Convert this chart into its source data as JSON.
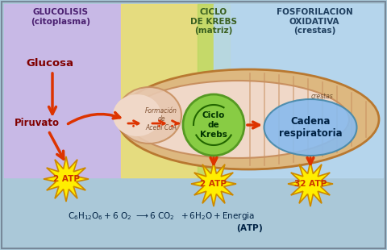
{
  "bg_color": "#aac8d8",
  "section_glucolisis_color": "#ccb8e8",
  "section_krebs_yellow": "#f0e070",
  "section_krebs_green": "#b8d860",
  "section_fosfo_color": "#b8d8f0",
  "title_glucolisis": "GLUCOLISIS\n(citoplasma)",
  "title_krebs": "CICLO\nDE KREBS\n(matriz)",
  "title_fosfo": "FOSFORILACION\nOXIDATIVA\n(crestas)",
  "label_glucosa": "Glucosa",
  "label_piruvato": "Piruvato",
  "label_formacion": "Formación\nde\nAcetil CoA",
  "label_ciclo": "Ciclo\nde\nKrebs",
  "label_cadena": "Cadena\nrespiratoria",
  "label_crestas": "crestas",
  "label_atp1": "2 ATP",
  "label_atp2": "2 ATP",
  "label_atp3": "32 ATP",
  "arrow_color": "#dd3300",
  "mito_outer_color": "#ddb880",
  "mito_inner_color": "#e8c8b0",
  "mito_matrix_color": "#f0d8c8",
  "mito_cristae_color": "#e0b898",
  "krebs_color": "#88cc44",
  "krebs_edge": "#559922",
  "cadena_color": "#88bbee",
  "cadena_edge": "#4488aa",
  "star_color": "#ffee00",
  "star_edge": "#cc8800",
  "atp_text_color": "#cc3300",
  "eq_color": "#002244"
}
